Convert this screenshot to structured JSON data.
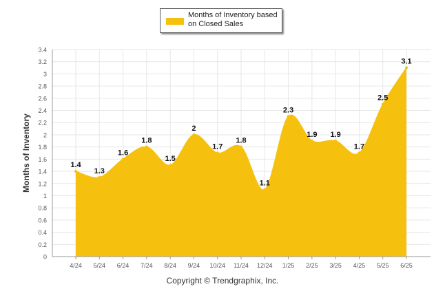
{
  "chart_data": {
    "type": "area",
    "categories": [
      "4/24",
      "5/24",
      "6/24",
      "7/24",
      "8/24",
      "9/24",
      "10/24",
      "11/24",
      "12/24",
      "1/25",
      "2/25",
      "3/25",
      "4/25",
      "5/25",
      "6/25"
    ],
    "series": [
      {
        "name": "Months of Inventory based on Closed Sales",
        "values": [
          1.4,
          1.3,
          1.6,
          1.8,
          1.5,
          2,
          1.7,
          1.8,
          1.1,
          2.3,
          1.9,
          1.9,
          1.7,
          2.5,
          3.1
        ],
        "labels": [
          "1.4",
          "1.3",
          "1.6",
          "1.8",
          "1.5",
          "2",
          "1.7",
          "1.8",
          "1.1",
          "2.3",
          "1.9",
          "1.9",
          "1.7",
          "2.5",
          "3.1"
        ]
      }
    ],
    "ylabel": "Months of Inventory",
    "ylim": [
      0,
      3.4
    ],
    "yticks": [
      "0",
      "0.2",
      "0.4",
      "0.6",
      "0.8",
      "1",
      "1.2",
      "1.4",
      "1.6",
      "1.8",
      "2",
      "2.2",
      "2.4",
      "2.6",
      "2.8",
      "3",
      "3.2",
      "3.4"
    ],
    "grid": true,
    "legend": "top-center",
    "colors": {
      "fill": "#f6c10e",
      "stroke": "#f6c10e",
      "grid": "#e6e6e6",
      "axis": "#999999"
    }
  },
  "legend": {
    "label": "Months of Inventory based on Closed Sales"
  },
  "footer": {
    "copyright": "Copyright © Trendgraphix, Inc."
  }
}
